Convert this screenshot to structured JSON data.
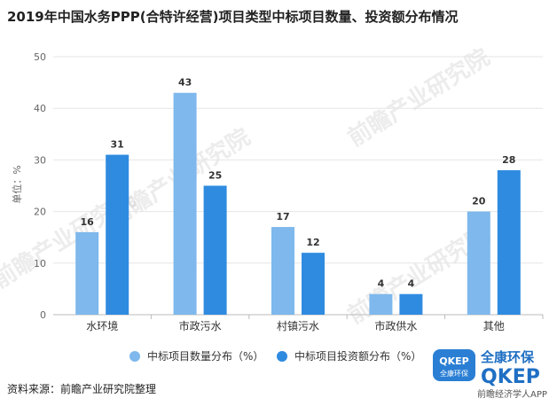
{
  "title": "2019年中国水务PPP(合特许经营)项目类型中标项目数量、投资额分布情况",
  "source": "资料来源：前瞻产业研究院整理",
  "watermark": "前瞻产业研究院",
  "logo": {
    "badge_top": "QKEP",
    "badge_bottom": "全康环保",
    "name_cn": "全康环保",
    "name_en": "QKEP",
    "tagline": "前瞻经济学人APP"
  },
  "colors": {
    "series1": "#7eb8ec",
    "series2": "#2f8be0",
    "grid": "#e6e6e6",
    "axis": "#bbbbbb"
  },
  "chart_data": {
    "type": "bar",
    "title": "2019年中国水务PPP(合特许经营)项目类型中标项目数量、投资额分布情况",
    "ylabel": "单位：%",
    "ylim": [
      0,
      50
    ],
    "yticks": [
      0,
      10,
      20,
      30,
      40,
      50
    ],
    "grid": true,
    "legend_position": "bottom",
    "categories": [
      "水环境",
      "市政污水",
      "村镇污水",
      "市政供水",
      "其他"
    ],
    "series": [
      {
        "name": "中标项目数量分布（%）",
        "values": [
          16,
          43,
          17,
          4,
          20
        ]
      },
      {
        "name": "中标项目投资额分布（%）",
        "values": [
          31,
          25,
          12,
          4,
          28
        ]
      }
    ]
  }
}
